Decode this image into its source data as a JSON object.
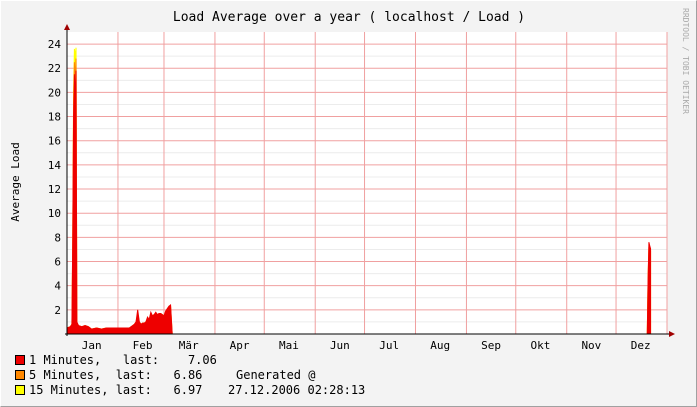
{
  "chart_data": {
    "type": "area",
    "title": "Load Average over a year ( localhost / Load )",
    "ylabel": "Average Load",
    "watermark": "RRDTOOL / TOBI OETIKER",
    "ylim": [
      0,
      25
    ],
    "yticks": [
      2,
      4,
      6,
      8,
      10,
      12,
      14,
      16,
      18,
      20,
      22,
      24
    ],
    "xlim": [
      0,
      365
    ],
    "months": [
      {
        "label": "Jan",
        "day": 15
      },
      {
        "label": "Feb",
        "day": 46
      },
      {
        "label": "Mär",
        "day": 74
      },
      {
        "label": "Apr",
        "day": 105
      },
      {
        "label": "Mai",
        "day": 135
      },
      {
        "label": "Jun",
        "day": 166
      },
      {
        "label": "Jul",
        "day": 196
      },
      {
        "label": "Aug",
        "day": 227
      },
      {
        "label": "Sep",
        "day": 258
      },
      {
        "label": "Okt",
        "day": 288
      },
      {
        "label": "Nov",
        "day": 319
      },
      {
        "label": "Dez",
        "day": 349
      }
    ],
    "series": [
      {
        "name": "1 Minutes",
        "color": "#ee0000",
        "x": [
          0,
          2,
          3,
          3.5,
          4,
          4.5,
          5,
          5.5,
          6,
          7,
          9,
          11,
          13,
          15,
          18,
          21,
          24,
          27,
          30,
          33,
          36,
          38,
          40,
          41,
          42,
          43,
          44,
          45,
          46,
          47,
          48,
          49,
          50,
          51,
          52,
          53,
          54,
          55,
          56,
          57,
          58,
          59,
          60,
          61,
          62,
          63,
          64,
          353,
          353.5,
          354,
          354.5,
          355
        ],
        "y": [
          0.5,
          0.6,
          0.8,
          8.0,
          18.0,
          21.5,
          19.5,
          21.8,
          1.0,
          0.7,
          0.6,
          0.7,
          0.6,
          0.4,
          0.5,
          0.4,
          0.5,
          0.5,
          0.5,
          0.5,
          0.5,
          0.5,
          0.7,
          0.8,
          1.0,
          2.0,
          1.0,
          0.8,
          0.9,
          0.9,
          1.0,
          1.4,
          1.2,
          1.8,
          1.5,
          1.6,
          1.8,
          1.6,
          1.7,
          1.7,
          1.6,
          1.5,
          1.9,
          2.1,
          2.3,
          2.4,
          0,
          0,
          4.5,
          7.6,
          7.3,
          7.06
        ]
      },
      {
        "name": "5 Minutes",
        "color": "#ff8800",
        "x": [
          0,
          2,
          3,
          3.5,
          4,
          4.5,
          5,
          5.5,
          6,
          7,
          9,
          11,
          13,
          15,
          18,
          21,
          24,
          27,
          30,
          33,
          36,
          38,
          40,
          41,
          42,
          43,
          44,
          45,
          46,
          47,
          48,
          49,
          50,
          51,
          52,
          53,
          54,
          55,
          56,
          57,
          58,
          59,
          60,
          61,
          62,
          63,
          64,
          353,
          353.5,
          354,
          354.5,
          355
        ],
        "y": [
          0.5,
          0.6,
          0.8,
          7.8,
          19.0,
          22.5,
          21.0,
          22.8,
          0.9,
          0.7,
          0.6,
          0.7,
          0.6,
          0.4,
          0.5,
          0.4,
          0.5,
          0.5,
          0.5,
          0.5,
          0.5,
          0.5,
          0.7,
          0.8,
          1.0,
          1.7,
          1.0,
          0.8,
          0.9,
          0.9,
          1.0,
          1.3,
          1.2,
          1.7,
          1.5,
          1.6,
          1.7,
          1.6,
          1.7,
          1.7,
          1.6,
          1.5,
          1.8,
          2.0,
          2.2,
          2.3,
          0,
          0,
          4.6,
          7.2,
          7.0,
          6.86
        ]
      },
      {
        "name": "15 Minutes",
        "color": "#ffff00",
        "x": [
          0,
          2,
          3,
          3.5,
          4,
          4.5,
          5,
          5.5,
          6,
          7,
          9,
          11,
          13,
          15,
          18,
          21,
          24,
          27,
          30,
          33,
          36,
          38,
          40,
          41,
          42,
          43,
          44,
          45,
          46,
          47,
          48,
          49,
          50,
          51,
          52,
          53,
          54,
          55,
          56,
          57,
          58,
          59,
          60,
          61,
          62,
          63,
          64,
          353,
          353.5,
          354,
          354.5,
          355
        ],
        "y": [
          0.5,
          0.6,
          0.8,
          7.5,
          20.0,
          23.6,
          23.0,
          23.7,
          0.8,
          0.6,
          0.5,
          0.6,
          0.5,
          0.4,
          0.5,
          0.4,
          0.5,
          0.5,
          0.5,
          0.5,
          0.5,
          0.5,
          0.6,
          0.7,
          0.9,
          1.4,
          0.9,
          0.8,
          0.9,
          0.9,
          1.0,
          1.2,
          1.2,
          1.6,
          1.5,
          1.6,
          1.6,
          1.6,
          1.6,
          1.6,
          1.6,
          1.5,
          1.7,
          1.9,
          2.1,
          2.2,
          0,
          0,
          4.6,
          7.0,
          6.99,
          6.97
        ]
      }
    ]
  },
  "legend": {
    "items": [
      {
        "label": "1 Minutes,   last:    7.06",
        "color": "#ee0000"
      },
      {
        "label": "5 Minutes,  last:   6.86",
        "color": "#ff8800"
      },
      {
        "label": "15 Minutes, last:   6.97",
        "color": "#ffff00"
      }
    ],
    "generated_label": "Generated @",
    "generated_time": "27.12.2006 02:28:13"
  }
}
